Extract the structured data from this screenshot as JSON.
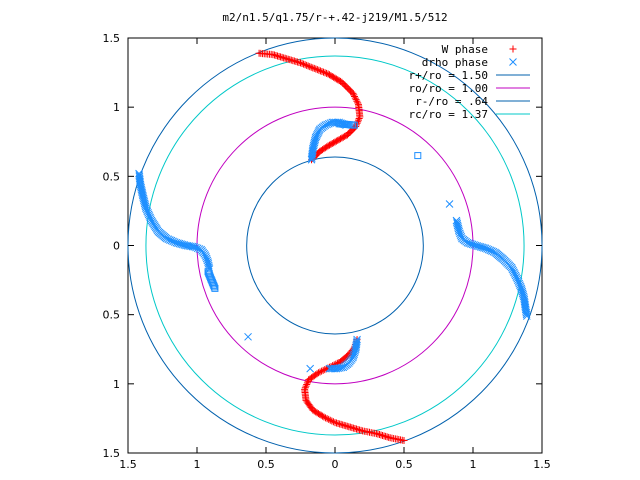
{
  "chart_data": {
    "type": "scatter",
    "title": "m2/n1.5/q1.75/r-+.42-j219/M1.5/512",
    "xlabel": "",
    "ylabel": "",
    "xlim": [
      -1.5,
      1.5
    ],
    "ylim": [
      -1.5,
      1.5
    ],
    "x_tick_labels": [
      "1.5",
      "1",
      "0.5",
      "0",
      "0.5",
      "1",
      "1.5"
    ],
    "y_tick_labels": [
      "1.5",
      "1",
      "0.5",
      "0",
      "0.5",
      "1",
      "1.5"
    ],
    "grid": false,
    "legend_position": "top-right",
    "series": [
      {
        "name": "W phase",
        "marker": "+",
        "color": "#ff0000",
        "points": [
          [
            -0.55,
            1.39
          ],
          [
            -0.45,
            1.38
          ],
          [
            -0.35,
            1.35
          ],
          [
            -0.25,
            1.32
          ],
          [
            -0.15,
            1.28
          ],
          [
            -0.05,
            1.24
          ],
          [
            0.05,
            1.18
          ],
          [
            0.13,
            1.1
          ],
          [
            0.17,
            1.02
          ],
          [
            0.18,
            0.93
          ],
          [
            0.15,
            0.86
          ],
          [
            0.09,
            0.8
          ],
          [
            0.02,
            0.76
          ],
          [
            -0.05,
            0.72
          ],
          [
            -0.11,
            0.68
          ],
          [
            -0.17,
            0.62
          ],
          [
            0.5,
            -1.41
          ],
          [
            0.4,
            -1.39
          ],
          [
            0.3,
            -1.36
          ],
          [
            0.2,
            -1.34
          ],
          [
            0.1,
            -1.31
          ],
          [
            0.0,
            -1.28
          ],
          [
            -0.08,
            -1.24
          ],
          [
            -0.16,
            -1.19
          ],
          [
            -0.21,
            -1.12
          ],
          [
            -0.22,
            -1.04
          ],
          [
            -0.19,
            -0.97
          ],
          [
            -0.12,
            -0.92
          ],
          [
            -0.04,
            -0.88
          ],
          [
            0.04,
            -0.84
          ],
          [
            0.1,
            -0.79
          ],
          [
            0.14,
            -0.74
          ],
          [
            0.16,
            -0.68
          ]
        ]
      },
      {
        "name": "drho phase",
        "marker": "x",
        "color": "#1e8fff",
        "points": [
          [
            -0.17,
            0.62
          ],
          [
            -0.16,
            0.7
          ],
          [
            -0.14,
            0.78
          ],
          [
            -0.11,
            0.84
          ],
          [
            -0.07,
            0.87
          ],
          [
            -0.02,
            0.89
          ],
          [
            0.03,
            0.89
          ],
          [
            0.08,
            0.87
          ],
          [
            -1.42,
            0.52
          ],
          [
            -1.41,
            0.44
          ],
          [
            -1.39,
            0.35
          ],
          [
            -1.37,
            0.27
          ],
          [
            -1.33,
            0.18
          ],
          [
            -1.28,
            0.1
          ],
          [
            -1.22,
            0.05
          ],
          [
            -1.15,
            0.02
          ],
          [
            -1.08,
            0.0
          ],
          [
            -1.02,
            -0.01
          ],
          [
            -0.97,
            -0.03
          ],
          [
            -0.94,
            -0.07
          ],
          [
            -0.92,
            -0.12
          ],
          [
            -0.91,
            -0.17
          ],
          [
            0.88,
            0.18
          ],
          [
            0.9,
            0.1
          ],
          [
            0.92,
            0.05
          ],
          [
            0.96,
            0.02
          ],
          [
            1.02,
            0.0
          ],
          [
            1.09,
            -0.02
          ],
          [
            1.16,
            -0.05
          ],
          [
            1.22,
            -0.1
          ],
          [
            1.28,
            -0.16
          ],
          [
            1.32,
            -0.24
          ],
          [
            1.35,
            -0.31
          ],
          [
            1.37,
            -0.38
          ],
          [
            1.38,
            -0.45
          ],
          [
            1.39,
            -0.51
          ],
          [
            0.16,
            -0.68
          ],
          [
            0.15,
            -0.75
          ],
          [
            0.13,
            -0.81
          ],
          [
            0.1,
            -0.85
          ],
          [
            0.06,
            -0.88
          ],
          [
            0.01,
            -0.89
          ],
          [
            -0.04,
            -0.89
          ],
          [
            0.83,
            0.3
          ],
          [
            -0.63,
            -0.66
          ],
          [
            -0.18,
            -0.89
          ]
        ]
      },
      {
        "name": "r+/ro = 1.50",
        "type": "circle",
        "radius": 1.5,
        "color": "#0060ad"
      },
      {
        "name": "ro/ro = 1.00",
        "type": "circle",
        "radius": 1.0,
        "color": "#c000c0"
      },
      {
        "name": "r-/ro = .64",
        "type": "circle",
        "radius": 0.64,
        "color": "#0060ad"
      },
      {
        "name": "rc/ro = 1.37",
        "type": "circle",
        "radius": 1.37,
        "color": "#00c8c8"
      },
      {
        "name": "",
        "marker": "square",
        "color": "#1e8fff",
        "points": [
          [
            0.14,
            0.87
          ],
          [
            0.03,
            0.88
          ],
          [
            0.6,
            0.65
          ],
          [
            -0.92,
            -0.19
          ],
          [
            -0.87,
            -0.31
          ]
        ]
      }
    ]
  }
}
